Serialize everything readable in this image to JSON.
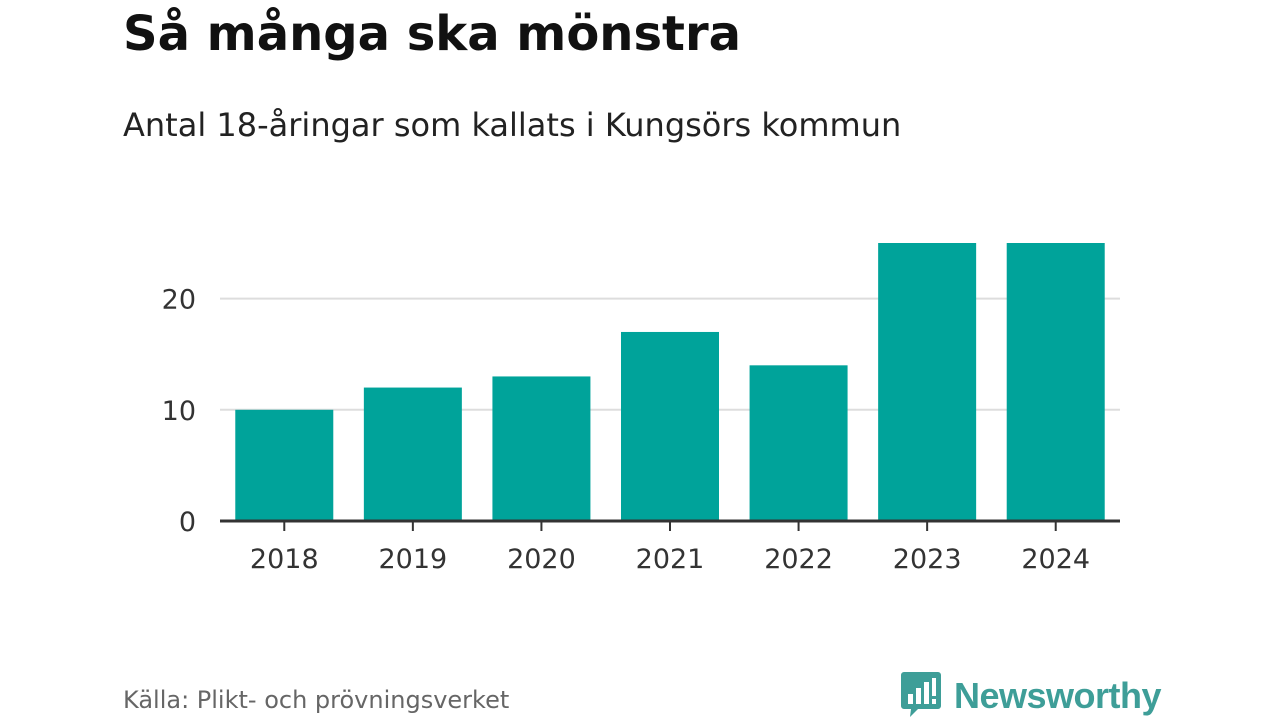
{
  "header": {
    "title": "Så många ska mönstra",
    "subtitle": "Antal 18-åringar som kallats i Kungsörs kommun"
  },
  "footer": {
    "source": "Källa: Plikt- och prövningsverket",
    "brand": "Newsworthy",
    "brand_icon": "bar-chart-bubble-icon"
  },
  "colors": {
    "bar": "#00a39a",
    "grid": "#dddddd",
    "axis": "#333333",
    "brand": "#3e9e98"
  },
  "chart_data": {
    "type": "bar",
    "categories": [
      "2018",
      "2019",
      "2020",
      "2021",
      "2022",
      "2023",
      "2024"
    ],
    "values": [
      10,
      12,
      13,
      17,
      14,
      25,
      25
    ],
    "ylim": [
      0,
      25
    ],
    "yticks": [
      0,
      10,
      20
    ],
    "grid": true,
    "xlabel": "",
    "ylabel": ""
  }
}
